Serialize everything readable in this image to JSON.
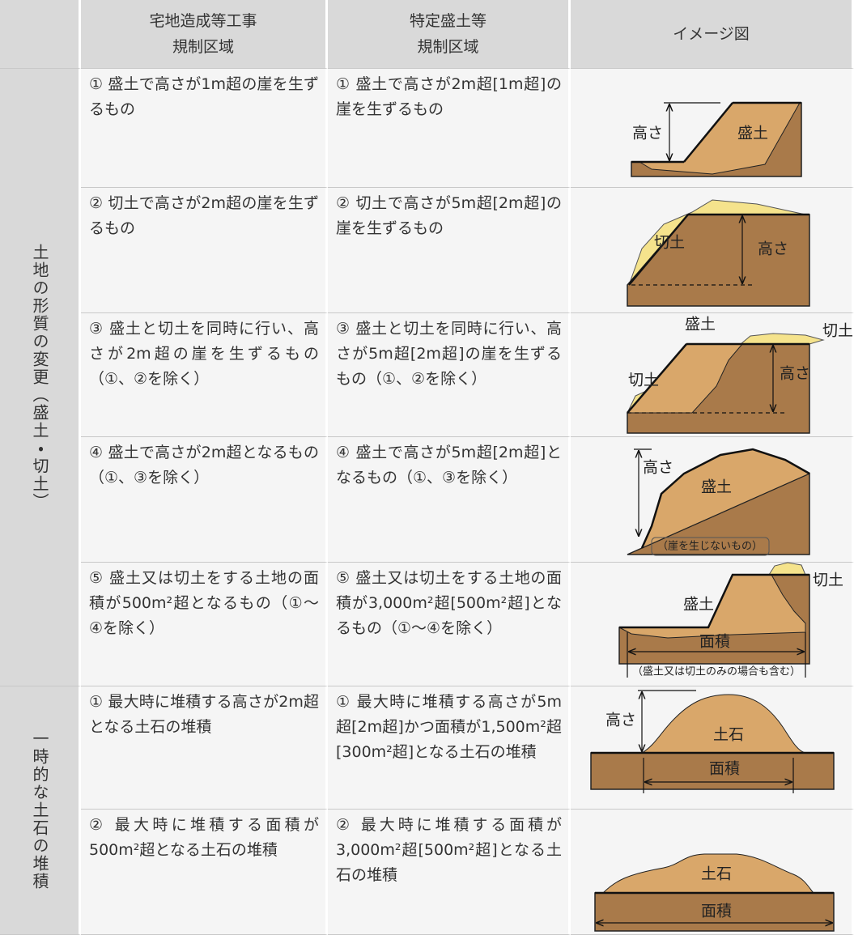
{
  "header": {
    "columns": [
      [
        "宅地造成等工事",
        "規制区域"
      ],
      [
        "特定盛土等",
        "規制区域"
      ],
      [
        "イメージ図"
      ]
    ]
  },
  "groups": [
    {
      "label": "土地の形質の変更（盛土・切土）",
      "rows": [
        {
          "residential": "① 盛土で高さが1m超の崖を生ずるもの",
          "specified": "① 盛土で高さが2m超[1m超]の崖を生ずるもの",
          "image_labels": [
            "高さ",
            "盛土"
          ]
        },
        {
          "residential": "② 切土で高さが2m超の崖を生ずるもの",
          "specified": "② 切土で高さが5m超[2m超]の崖を生ずるもの",
          "image_labels": [
            "切土",
            "高さ"
          ]
        },
        {
          "residential": "③ 盛土と切土を同時に行い、高さが2m超の崖を生ずるもの（①、②を除く）",
          "specified": "③ 盛土と切土を同時に行い、高さが5m超[2m超]の崖を生ずるもの（①、②を除く）",
          "image_labels": [
            "盛土",
            "切土",
            "切土",
            "高さ"
          ]
        },
        {
          "residential": "④ 盛土で高さが2m超となるもの（①、③を除く）",
          "specified": "④ 盛土で高さが5m超[2m超]となるもの（①、③を除く）",
          "image_labels": [
            "高さ",
            "盛土",
            "（崖を生じないもの）"
          ]
        },
        {
          "residential": "⑤ 盛土又は切土をする土地の面積が500m²超となるもの（①～④を除く）",
          "specified": "⑤ 盛土又は切土をする土地の面積が3,000m²超[500m²超]となるもの（①～④を除く）",
          "image_labels": [
            "切土",
            "盛土",
            "面積",
            "（盛土又は切土のみの場合も含む）"
          ]
        }
      ]
    },
    {
      "label": "一時的な土石の堆積",
      "rows": [
        {
          "residential": "① 最大時に堆積する高さが2m超となる土石の堆積",
          "specified": "① 最大時に堆積する高さが5m超[2m超]かつ面積が1,500m²超[300m²超]となる土石の堆積",
          "image_labels": [
            "高さ",
            "土石",
            "面積"
          ]
        },
        {
          "residential": "② 最大時に堆積する面積が500m²超となる土石の堆積",
          "specified": "② 最大時に堆積する面積が3,000m²超[500m²超]となる土石の堆積",
          "image_labels": [
            "土石",
            "面積"
          ]
        }
      ]
    }
  ]
}
